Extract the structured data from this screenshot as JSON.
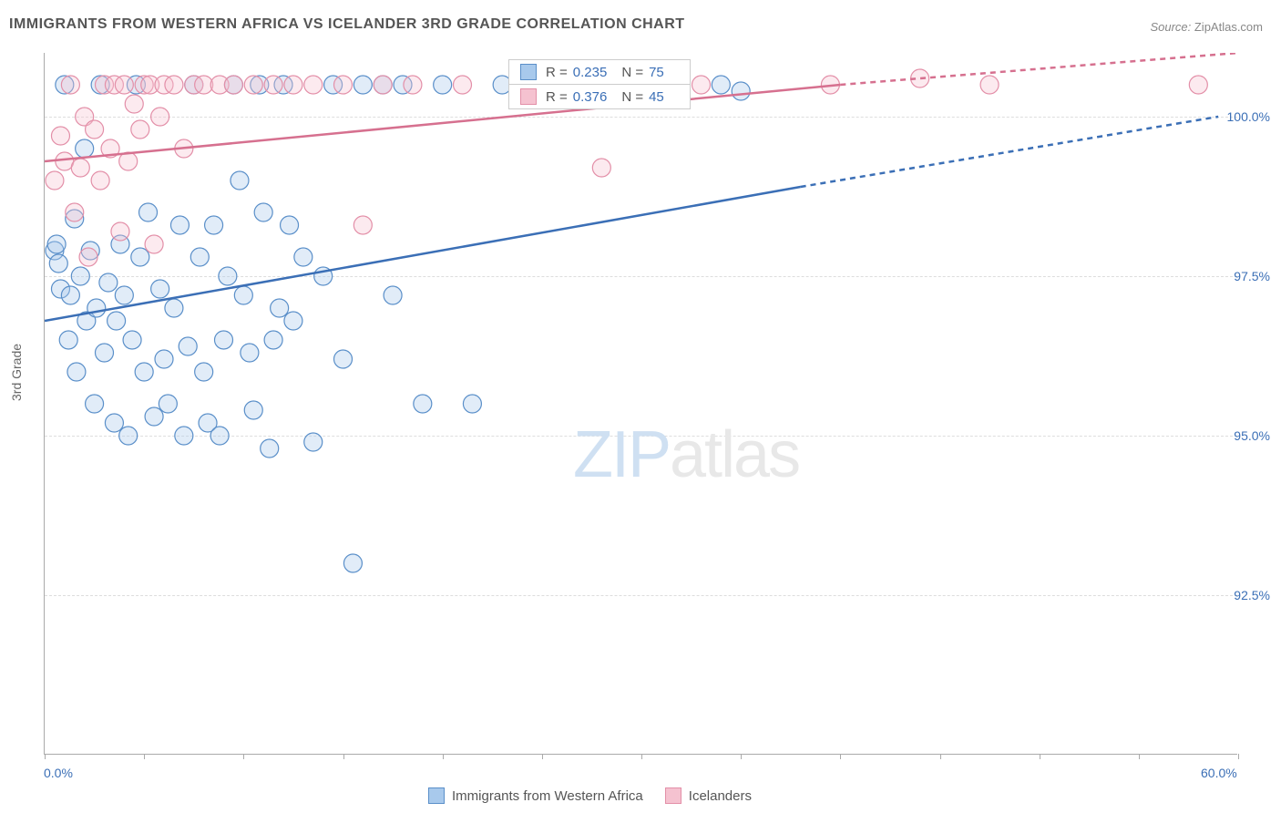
{
  "title": "IMMIGRANTS FROM WESTERN AFRICA VS ICELANDER 3RD GRADE CORRELATION CHART",
  "source_prefix": "Source: ",
  "source_name": "ZipAtlas.com",
  "watermark_a": "ZIP",
  "watermark_b": "atlas",
  "yaxis_label": "3rd Grade",
  "chart": {
    "type": "scatter",
    "xlim": [
      0,
      60
    ],
    "ylim": [
      90,
      101
    ],
    "yticks": [
      92.5,
      95.0,
      97.5,
      100.0
    ],
    "ytick_labels": [
      "92.5%",
      "95.0%",
      "97.5%",
      "100.0%"
    ],
    "xtick_major": [
      0,
      60
    ],
    "xtick_labels": [
      "0.0%",
      "60.0%"
    ],
    "xtick_minor": [
      5,
      10,
      15,
      20,
      25,
      30,
      35,
      40,
      45,
      50,
      55
    ],
    "grid_color": "#dddddd",
    "axis_color": "#aaaaaa",
    "background_color": "#ffffff",
    "marker_radius": 10,
    "marker_opacity": 0.35,
    "line_width": 2.5
  },
  "series": [
    {
      "name": "Immigrants from Western Africa",
      "fill": "#a8c9ec",
      "stroke": "#5a8fc9",
      "line_color": "#3b6fb6",
      "R": "0.235",
      "N": "75",
      "trend": {
        "x1": 0,
        "y1": 96.8,
        "x2": 38,
        "y2": 98.9,
        "x2_dash": 59,
        "y2_dash": 100.0
      },
      "points": [
        [
          0.5,
          97.9
        ],
        [
          0.6,
          98.0
        ],
        [
          0.7,
          97.7
        ],
        [
          0.8,
          97.3
        ],
        [
          1.0,
          100.5
        ],
        [
          1.2,
          96.5
        ],
        [
          1.3,
          97.2
        ],
        [
          1.5,
          98.4
        ],
        [
          1.6,
          96.0
        ],
        [
          1.8,
          97.5
        ],
        [
          2.0,
          99.5
        ],
        [
          2.1,
          96.8
        ],
        [
          2.3,
          97.9
        ],
        [
          2.5,
          95.5
        ],
        [
          2.6,
          97.0
        ],
        [
          2.8,
          100.5
        ],
        [
          3.0,
          96.3
        ],
        [
          3.2,
          97.4
        ],
        [
          3.5,
          95.2
        ],
        [
          3.6,
          96.8
        ],
        [
          3.8,
          98.0
        ],
        [
          4.0,
          97.2
        ],
        [
          4.2,
          95.0
        ],
        [
          4.4,
          96.5
        ],
        [
          4.6,
          100.5
        ],
        [
          4.8,
          97.8
        ],
        [
          5.0,
          96.0
        ],
        [
          5.2,
          98.5
        ],
        [
          5.5,
          95.3
        ],
        [
          5.8,
          97.3
        ],
        [
          6.0,
          96.2
        ],
        [
          6.2,
          95.5
        ],
        [
          6.5,
          97.0
        ],
        [
          6.8,
          98.3
        ],
        [
          7.0,
          95.0
        ],
        [
          7.2,
          96.4
        ],
        [
          7.5,
          100.5
        ],
        [
          7.8,
          97.8
        ],
        [
          8.0,
          96.0
        ],
        [
          8.2,
          95.2
        ],
        [
          8.5,
          98.3
        ],
        [
          8.8,
          95.0
        ],
        [
          9.0,
          96.5
        ],
        [
          9.2,
          97.5
        ],
        [
          9.5,
          100.5
        ],
        [
          9.8,
          99.0
        ],
        [
          10.0,
          97.2
        ],
        [
          10.3,
          96.3
        ],
        [
          10.5,
          95.4
        ],
        [
          10.8,
          100.5
        ],
        [
          11.0,
          98.5
        ],
        [
          11.3,
          94.8
        ],
        [
          11.5,
          96.5
        ],
        [
          11.8,
          97.0
        ],
        [
          12.0,
          100.5
        ],
        [
          12.3,
          98.3
        ],
        [
          12.5,
          96.8
        ],
        [
          13.0,
          97.8
        ],
        [
          13.5,
          94.9
        ],
        [
          14.0,
          97.5
        ],
        [
          14.5,
          100.5
        ],
        [
          15.0,
          96.2
        ],
        [
          15.5,
          93.0
        ],
        [
          16.0,
          100.5
        ],
        [
          17.0,
          100.5
        ],
        [
          17.5,
          97.2
        ],
        [
          18.0,
          100.5
        ],
        [
          19.0,
          95.5
        ],
        [
          20.0,
          100.5
        ],
        [
          21.5,
          95.5
        ],
        [
          23.0,
          100.5
        ],
        [
          27.0,
          100.5
        ],
        [
          30.0,
          100.4
        ],
        [
          34.0,
          100.5
        ],
        [
          35.0,
          100.4
        ]
      ]
    },
    {
      "name": "Icelanders",
      "fill": "#f5c2d0",
      "stroke": "#e38fa8",
      "line_color": "#d6708f",
      "R": "0.376",
      "N": "45",
      "trend": {
        "x1": 0,
        "y1": 99.3,
        "x2": 40,
        "y2": 100.5,
        "x2_dash": 60,
        "y2_dash": 101.0
      },
      "points": [
        [
          0.5,
          99.0
        ],
        [
          0.8,
          99.7
        ],
        [
          1.0,
          99.3
        ],
        [
          1.3,
          100.5
        ],
        [
          1.5,
          98.5
        ],
        [
          1.8,
          99.2
        ],
        [
          2.0,
          100.0
        ],
        [
          2.2,
          97.8
        ],
        [
          2.5,
          99.8
        ],
        [
          2.8,
          99.0
        ],
        [
          3.0,
          100.5
        ],
        [
          3.3,
          99.5
        ],
        [
          3.5,
          100.5
        ],
        [
          3.8,
          98.2
        ],
        [
          4.0,
          100.5
        ],
        [
          4.2,
          99.3
        ],
        [
          4.5,
          100.2
        ],
        [
          4.8,
          99.8
        ],
        [
          5.0,
          100.5
        ],
        [
          5.3,
          100.5
        ],
        [
          5.5,
          98.0
        ],
        [
          5.8,
          100.0
        ],
        [
          6.0,
          100.5
        ],
        [
          6.5,
          100.5
        ],
        [
          7.0,
          99.5
        ],
        [
          7.5,
          100.5
        ],
        [
          8.0,
          100.5
        ],
        [
          8.8,
          100.5
        ],
        [
          9.5,
          100.5
        ],
        [
          10.5,
          100.5
        ],
        [
          11.5,
          100.5
        ],
        [
          12.5,
          100.5
        ],
        [
          13.5,
          100.5
        ],
        [
          15.0,
          100.5
        ],
        [
          16.0,
          98.3
        ],
        [
          17.0,
          100.5
        ],
        [
          18.5,
          100.5
        ],
        [
          21.0,
          100.5
        ],
        [
          26.5,
          100.5
        ],
        [
          28.0,
          99.2
        ],
        [
          33.0,
          100.5
        ],
        [
          39.5,
          100.5
        ],
        [
          44.0,
          100.6
        ],
        [
          47.5,
          100.5
        ],
        [
          58.0,
          100.5
        ]
      ]
    }
  ],
  "legend_top": {
    "r_label": "R =",
    "n_label": "N ="
  },
  "legend_bottom": [
    {
      "label": "Immigrants from Western Africa",
      "fill": "#a8c9ec",
      "stroke": "#5a8fc9"
    },
    {
      "label": "Icelanders",
      "fill": "#f5c2d0",
      "stroke": "#e38fa8"
    }
  ]
}
